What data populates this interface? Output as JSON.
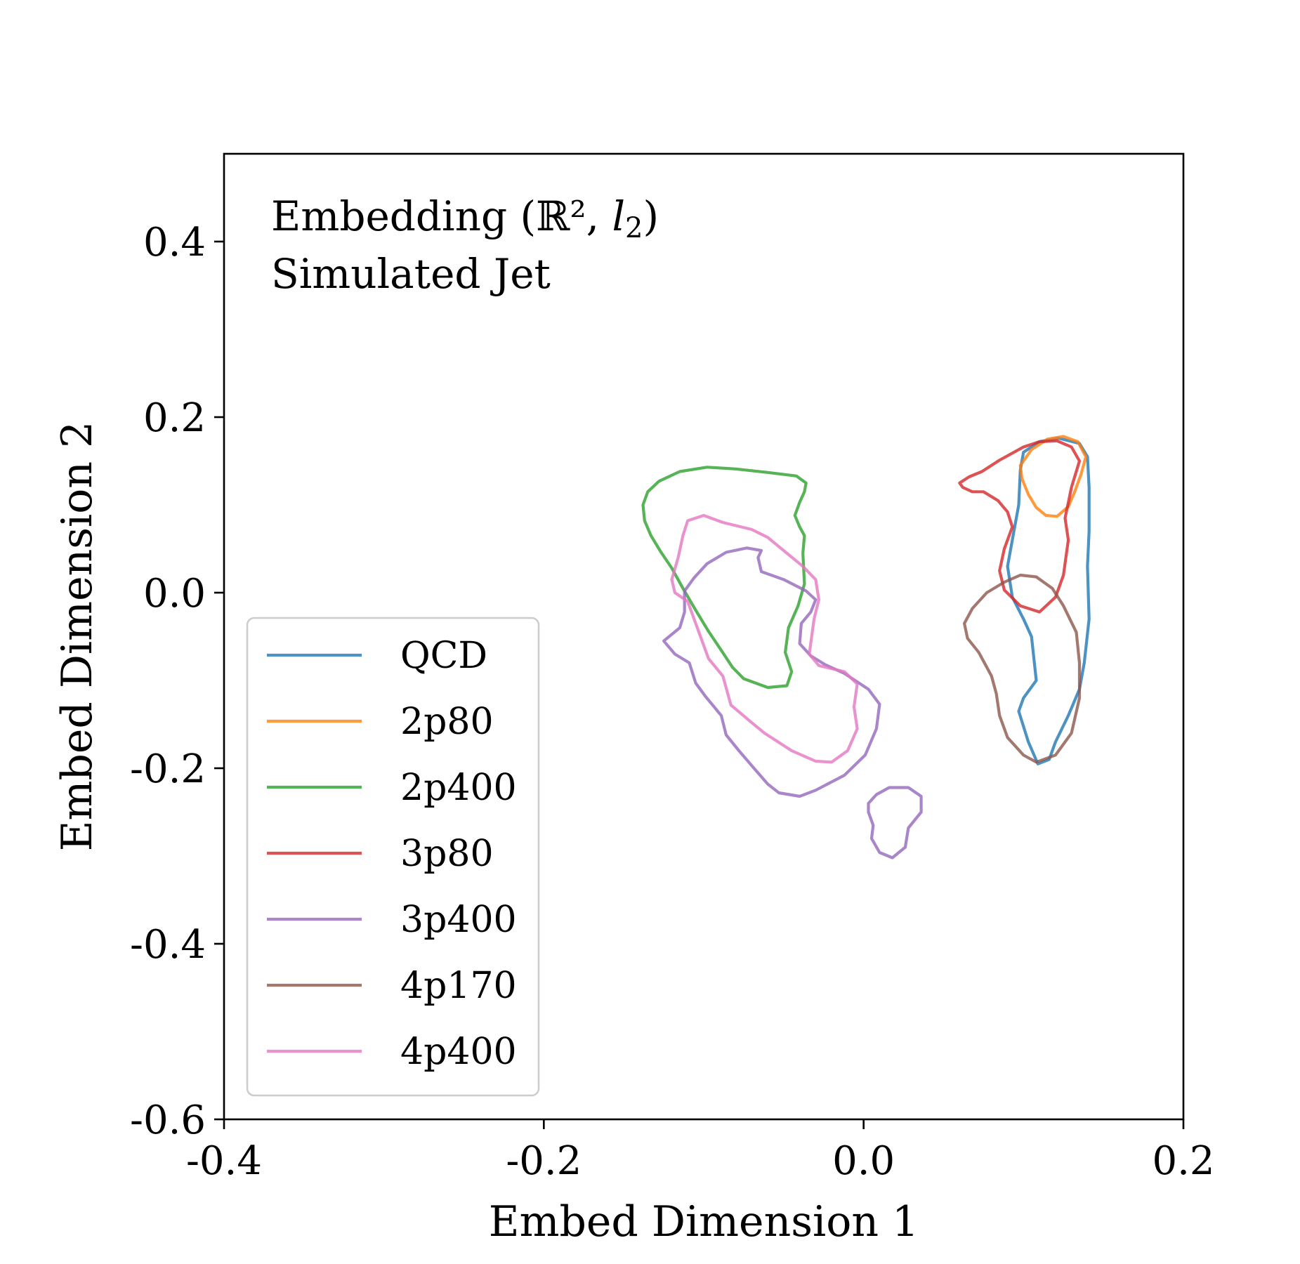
{
  "chart_data": {
    "type": "line",
    "annotation": {
      "line1_text": "Embedding (",
      "line1_math": "ℝ²",
      "line1_sep": ", ",
      "line1_l": "l",
      "line1_sub": "2",
      "line1_close": ")",
      "line2": "Simulated Jet"
    },
    "xlabel": "Embed Dimension 1",
    "ylabel": "Embed Dimension 2",
    "xlim": [
      -0.4,
      0.2
    ],
    "ylim": [
      -0.6,
      0.5
    ],
    "xticks": [
      -0.4,
      -0.2,
      0.0,
      0.2
    ],
    "xtick_labels": [
      "-0.4",
      "-0.2",
      "0.0",
      "0.2"
    ],
    "yticks": [
      -0.6,
      -0.4,
      -0.2,
      0.0,
      0.2,
      0.4
    ],
    "ytick_labels": [
      "-0.6",
      "-0.4",
      "-0.2",
      "0.0",
      "0.2",
      "0.4"
    ],
    "grid": false,
    "legend_position": "lower-left",
    "series": [
      {
        "name": "QCD",
        "color": "#1f77b4",
        "rings": [
          [
            [
              0.098,
              0.14
            ],
            [
              0.1,
              0.16
            ],
            [
              0.11,
              0.172
            ],
            [
              0.122,
              0.176
            ],
            [
              0.135,
              0.17
            ],
            [
              0.14,
              0.155
            ],
            [
              0.141,
              0.12
            ],
            [
              0.141,
              0.07
            ],
            [
              0.14,
              0.03
            ],
            [
              0.141,
              -0.03
            ],
            [
              0.138,
              -0.08
            ],
            [
              0.135,
              -0.11
            ],
            [
              0.128,
              -0.14
            ],
            [
              0.12,
              -0.17
            ],
            [
              0.116,
              -0.19
            ],
            [
              0.109,
              -0.195
            ],
            [
              0.103,
              -0.17
            ],
            [
              0.097,
              -0.135
            ],
            [
              0.1,
              -0.12
            ],
            [
              0.108,
              -0.1
            ],
            [
              0.105,
              -0.05
            ],
            [
              0.1,
              -0.03
            ],
            [
              0.093,
              -0.005
            ],
            [
              0.09,
              0.03
            ],
            [
              0.093,
              0.06
            ],
            [
              0.097,
              0.1
            ],
            [
              0.098,
              0.14
            ]
          ]
        ]
      },
      {
        "name": "2p80",
        "color": "#ff7f0e",
        "rings": [
          [
            [
              0.098,
              0.145
            ],
            [
              0.105,
              0.163
            ],
            [
              0.115,
              0.175
            ],
            [
              0.125,
              0.178
            ],
            [
              0.134,
              0.172
            ],
            [
              0.139,
              0.155
            ],
            [
              0.136,
              0.135
            ],
            [
              0.132,
              0.115
            ],
            [
              0.128,
              0.098
            ],
            [
              0.121,
              0.087
            ],
            [
              0.114,
              0.088
            ],
            [
              0.108,
              0.097
            ],
            [
              0.103,
              0.112
            ],
            [
              0.099,
              0.13
            ],
            [
              0.098,
              0.145
            ]
          ]
        ]
      },
      {
        "name": "2p400",
        "color": "#2ca02c",
        "rings": [
          [
            [
              -0.138,
              0.1
            ],
            [
              -0.135,
              0.115
            ],
            [
              -0.128,
              0.127
            ],
            [
              -0.115,
              0.138
            ],
            [
              -0.098,
              0.143
            ],
            [
              -0.08,
              0.141
            ],
            [
              -0.06,
              0.137
            ],
            [
              -0.042,
              0.133
            ],
            [
              -0.036,
              0.125
            ],
            [
              -0.037,
              0.115
            ],
            [
              -0.04,
              0.103
            ],
            [
              -0.043,
              0.088
            ],
            [
              -0.04,
              0.075
            ],
            [
              -0.037,
              0.065
            ],
            [
              -0.038,
              0.045
            ],
            [
              -0.037,
              0.01
            ],
            [
              -0.041,
              -0.015
            ],
            [
              -0.047,
              -0.04
            ],
            [
              -0.049,
              -0.068
            ],
            [
              -0.045,
              -0.09
            ],
            [
              -0.048,
              -0.106
            ],
            [
              -0.06,
              -0.108
            ],
            [
              -0.075,
              -0.098
            ],
            [
              -0.082,
              -0.085
            ],
            [
              -0.09,
              -0.063
            ],
            [
              -0.097,
              -0.044
            ],
            [
              -0.105,
              -0.02
            ],
            [
              -0.113,
              0.005
            ],
            [
              -0.12,
              0.028
            ],
            [
              -0.127,
              0.047
            ],
            [
              -0.133,
              0.065
            ],
            [
              -0.137,
              0.082
            ],
            [
              -0.138,
              0.1
            ]
          ]
        ]
      },
      {
        "name": "3p80",
        "color": "#d62728",
        "rings": [
          [
            [
              0.06,
              0.125
            ],
            [
              0.066,
              0.132
            ],
            [
              0.074,
              0.138
            ],
            [
              0.085,
              0.151
            ],
            [
              0.1,
              0.166
            ],
            [
              0.11,
              0.172
            ],
            [
              0.121,
              0.173
            ],
            [
              0.13,
              0.166
            ],
            [
              0.135,
              0.15
            ],
            [
              0.13,
              0.12
            ],
            [
              0.126,
              0.085
            ],
            [
              0.128,
              0.06
            ],
            [
              0.125,
              0.02
            ],
            [
              0.12,
              -0.005
            ],
            [
              0.11,
              -0.022
            ],
            [
              0.098,
              -0.015
            ],
            [
              0.088,
              0.003
            ],
            [
              0.085,
              0.025
            ],
            [
              0.088,
              0.05
            ],
            [
              0.093,
              0.075
            ],
            [
              0.09,
              0.092
            ],
            [
              0.084,
              0.105
            ],
            [
              0.075,
              0.115
            ],
            [
              0.068,
              0.115
            ],
            [
              0.062,
              0.12
            ],
            [
              0.06,
              0.125
            ]
          ]
        ]
      },
      {
        "name": "3p400",
        "color": "#9467bd",
        "rings": [
          [
            [
              -0.125,
              -0.055
            ],
            [
              -0.115,
              -0.04
            ],
            [
              -0.112,
              -0.022
            ],
            [
              -0.112,
              0.002
            ],
            [
              -0.106,
              0.017
            ],
            [
              -0.098,
              0.033
            ],
            [
              -0.086,
              0.046
            ],
            [
              -0.073,
              0.051
            ],
            [
              -0.064,
              0.048
            ],
            [
              -0.066,
              0.04
            ],
            [
              -0.064,
              0.024
            ],
            [
              -0.05,
              0.015
            ],
            [
              -0.036,
              0.002
            ],
            [
              -0.03,
              -0.008
            ],
            [
              -0.033,
              -0.022
            ],
            [
              -0.039,
              -0.035
            ],
            [
              -0.04,
              -0.058
            ],
            [
              -0.033,
              -0.072
            ],
            [
              -0.024,
              -0.082
            ],
            [
              -0.012,
              -0.092
            ],
            [
              0.003,
              -0.11
            ],
            [
              0.01,
              -0.127
            ],
            [
              0.008,
              -0.155
            ],
            [
              0.001,
              -0.185
            ],
            [
              -0.012,
              -0.208
            ],
            [
              -0.03,
              -0.225
            ],
            [
              -0.04,
              -0.232
            ],
            [
              -0.053,
              -0.228
            ],
            [
              -0.06,
              -0.218
            ],
            [
              -0.07,
              -0.197
            ],
            [
              -0.078,
              -0.18
            ],
            [
              -0.086,
              -0.162
            ],
            [
              -0.089,
              -0.14
            ],
            [
              -0.099,
              -0.118
            ],
            [
              -0.105,
              -0.103
            ],
            [
              -0.109,
              -0.08
            ],
            [
              -0.118,
              -0.07
            ],
            [
              -0.125,
              -0.055
            ]
          ],
          [
            [
              0.003,
              -0.24
            ],
            [
              0.008,
              -0.23
            ],
            [
              0.016,
              -0.222
            ],
            [
              0.028,
              -0.222
            ],
            [
              0.036,
              -0.232
            ],
            [
              0.036,
              -0.25
            ],
            [
              0.028,
              -0.268
            ],
            [
              0.026,
              -0.29
            ],
            [
              0.018,
              -0.302
            ],
            [
              0.01,
              -0.296
            ],
            [
              0.005,
              -0.28
            ],
            [
              0.006,
              -0.265
            ],
            [
              0.003,
              -0.25
            ],
            [
              0.003,
              -0.24
            ]
          ]
        ]
      },
      {
        "name": "4p170",
        "color": "#8c564b",
        "rings": [
          [
            [
              0.063,
              -0.035
            ],
            [
              0.068,
              -0.018
            ],
            [
              0.077,
              0.0
            ],
            [
              0.088,
              0.012
            ],
            [
              0.098,
              0.02
            ],
            [
              0.108,
              0.018
            ],
            [
              0.118,
              0.005
            ],
            [
              0.125,
              -0.015
            ],
            [
              0.133,
              -0.045
            ],
            [
              0.135,
              -0.08
            ],
            [
              0.135,
              -0.12
            ],
            [
              0.13,
              -0.16
            ],
            [
              0.12,
              -0.185
            ],
            [
              0.108,
              -0.193
            ],
            [
              0.1,
              -0.185
            ],
            [
              0.09,
              -0.165
            ],
            [
              0.085,
              -0.14
            ],
            [
              0.083,
              -0.115
            ],
            [
              0.08,
              -0.095
            ],
            [
              0.072,
              -0.068
            ],
            [
              0.065,
              -0.052
            ],
            [
              0.063,
              -0.035
            ]
          ]
        ]
      },
      {
        "name": "4p400",
        "color": "#e377c2",
        "rings": [
          [
            [
              -0.12,
              0.015
            ],
            [
              -0.116,
              0.04
            ],
            [
              -0.113,
              0.065
            ],
            [
              -0.11,
              0.082
            ],
            [
              -0.1,
              0.088
            ],
            [
              -0.088,
              0.08
            ],
            [
              -0.07,
              0.072
            ],
            [
              -0.06,
              0.063
            ],
            [
              -0.05,
              0.048
            ],
            [
              -0.038,
              0.03
            ],
            [
              -0.03,
              0.015
            ],
            [
              -0.028,
              -0.008
            ],
            [
              -0.031,
              -0.03
            ],
            [
              -0.034,
              -0.07
            ],
            [
              -0.028,
              -0.083
            ],
            [
              -0.012,
              -0.09
            ],
            [
              -0.004,
              -0.104
            ],
            [
              -0.006,
              -0.13
            ],
            [
              -0.004,
              -0.155
            ],
            [
              -0.01,
              -0.18
            ],
            [
              -0.02,
              -0.193
            ],
            [
              -0.03,
              -0.192
            ],
            [
              -0.045,
              -0.18
            ],
            [
              -0.062,
              -0.16
            ],
            [
              -0.07,
              -0.148
            ],
            [
              -0.083,
              -0.128
            ],
            [
              -0.088,
              -0.095
            ],
            [
              -0.097,
              -0.075
            ],
            [
              -0.102,
              -0.05
            ],
            [
              -0.105,
              -0.035
            ],
            [
              -0.11,
              -0.01
            ],
            [
              -0.118,
              0.0
            ],
            [
              -0.12,
              0.015
            ]
          ]
        ]
      }
    ]
  }
}
